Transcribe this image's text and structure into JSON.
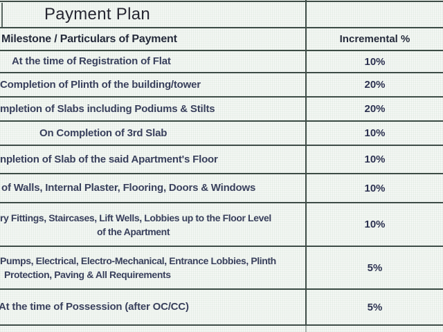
{
  "table": {
    "title": "Payment Plan",
    "header": {
      "milestone": "Milestone / Particulars of Payment",
      "incremental": "Incremental %"
    },
    "rows": [
      {
        "lines": [
          "At the time of Registration of Flat"
        ],
        "percent": "10%"
      },
      {
        "lines": [
          "Completion of Plinth of the building/tower"
        ],
        "percent": "20%"
      },
      {
        "lines": [
          "mpletion of Slabs including Podiums & Stilts"
        ],
        "percent": "20%"
      },
      {
        "lines": [
          "On Completion of 3rd Slab"
        ],
        "percent": "10%"
      },
      {
        "lines": [
          "npletion of Slab of the said Apartment's Floor"
        ],
        "percent": "10%"
      },
      {
        "lines": [
          "of Walls, Internal Plaster, Flooring, Doors & Windows"
        ],
        "percent": "10%"
      },
      {
        "lines": [
          "ry Fittings, Staircases, Lift Wells, Lobbies up to the Floor Level",
          "of the Apartment"
        ],
        "percent": "10%"
      },
      {
        "lines": [
          "Pumps, Electrical, Electro-Mechanical, Entrance Lobbies, Plinth",
          "Protection, Paving & All Requirements"
        ],
        "percent": "5%"
      },
      {
        "lines": [
          "At the time of Possession (after OC/CC)"
        ],
        "percent": "5%"
      }
    ],
    "colors": {
      "border": "#3c4b45",
      "body_text": "#39405c",
      "title_text": "#262631",
      "background": "#f4f7f4"
    }
  }
}
